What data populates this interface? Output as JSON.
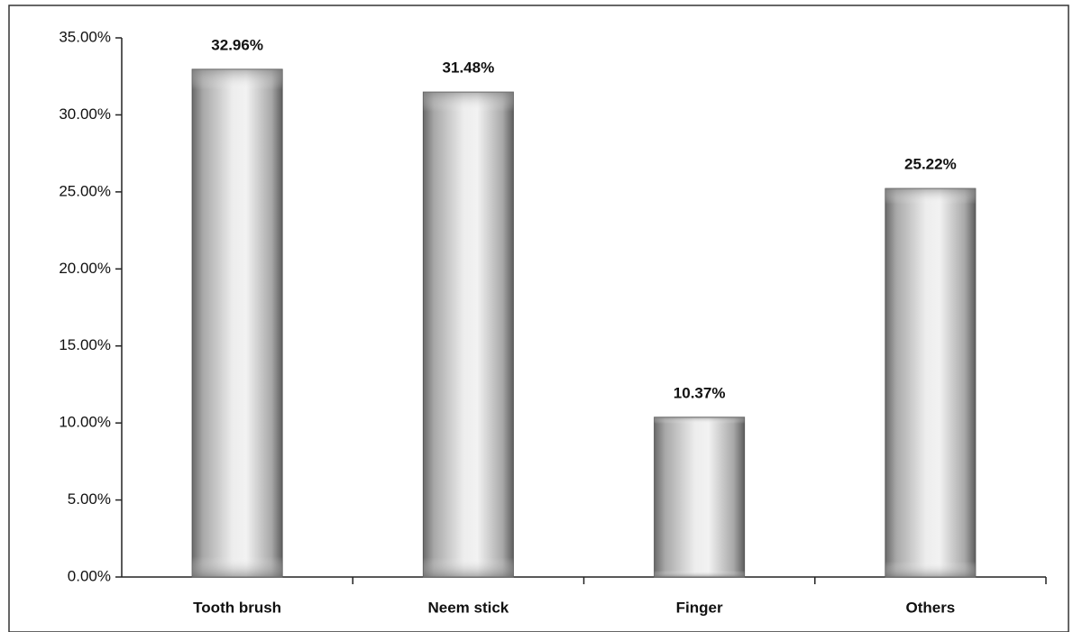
{
  "chart_data": {
    "type": "bar",
    "categories": [
      "Tooth brush",
      "Neem stick",
      "Finger",
      "Others"
    ],
    "values": [
      32.96,
      31.48,
      10.37,
      25.22
    ],
    "value_labels": [
      "32.96%",
      "31.48%",
      "10.37%",
      "25.22%"
    ],
    "color": "#b8b8b8",
    "ylim": [
      0,
      35
    ],
    "yticks": [
      {
        "value": 0,
        "label": "0.00%"
      },
      {
        "value": 5,
        "label": "5.00%"
      },
      {
        "value": 10,
        "label": "10.00%"
      },
      {
        "value": 15,
        "label": "15.00%"
      },
      {
        "value": 20,
        "label": "20.00%"
      },
      {
        "value": 25,
        "label": "25.00%"
      },
      {
        "value": 30,
        "label": "30.00%"
      },
      {
        "value": 35,
        "label": "35.00%"
      }
    ],
    "grid": false
  }
}
